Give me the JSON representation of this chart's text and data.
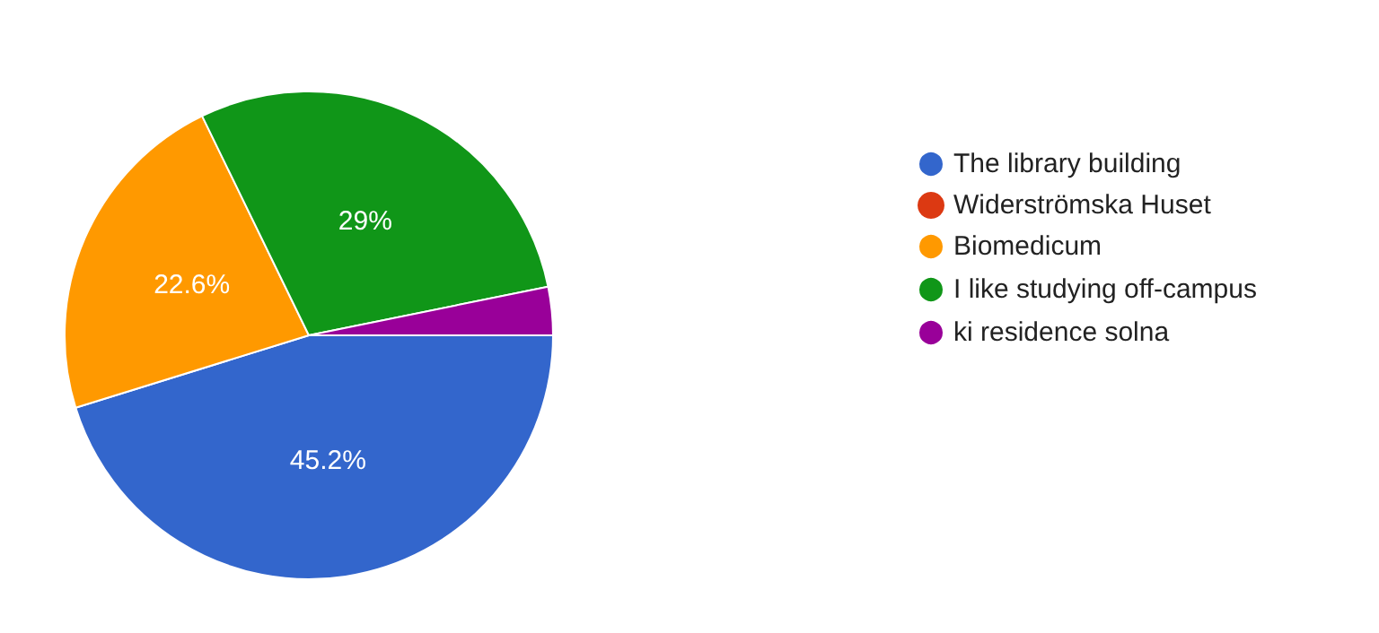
{
  "chart_data": {
    "type": "pie",
    "categories": [
      "The library building",
      "Widerströmska Huset",
      "Biomedicum",
      "I like studying off-campus",
      "ki residence solna"
    ],
    "values": [
      45.2,
      0,
      22.6,
      29,
      3.2
    ],
    "value_labels": [
      "45.2%",
      null,
      "22.6%",
      "29%",
      null
    ],
    "colors": [
      "#3366cc",
      "#dc3912",
      "#ff9900",
      "#109618",
      "#990099"
    ],
    "legend": "right"
  }
}
